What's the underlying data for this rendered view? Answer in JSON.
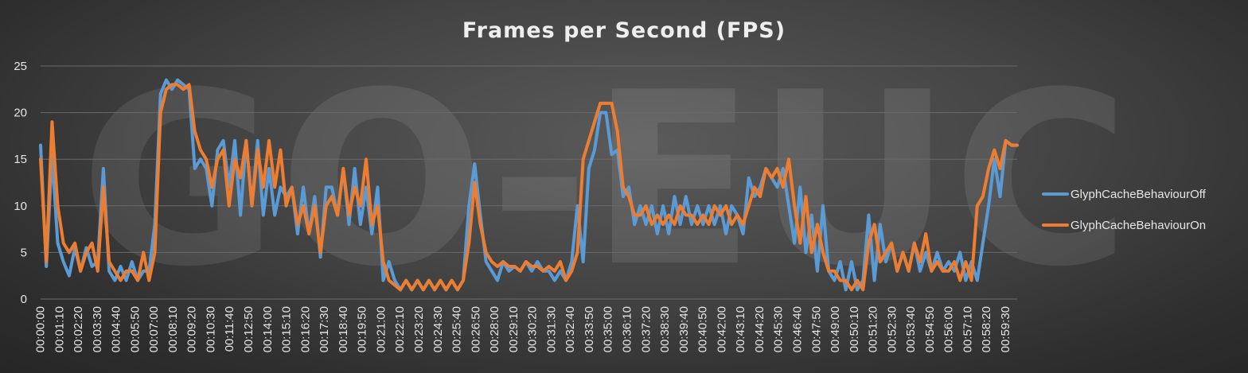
{
  "chart_data": {
    "type": "line",
    "title": "Frames per Second (FPS)",
    "watermark": "GO-EUC",
    "xlabel": "",
    "ylabel": "",
    "ylim": [
      0,
      25
    ],
    "yticks": [
      0,
      5,
      10,
      15,
      20,
      25
    ],
    "grid": "horizontal",
    "legend_position": "right",
    "x_tick_labels": [
      "00:00:00",
      "00:01:10",
      "00:02:20",
      "00:03:30",
      "00:04:40",
      "00:05:50",
      "00:07:00",
      "00:08:10",
      "00:09:20",
      "00:10:30",
      "00:11:40",
      "00:12:50",
      "00:14:00",
      "00:15:10",
      "00:16:20",
      "00:17:30",
      "00:18:40",
      "00:19:50",
      "00:21:00",
      "00:22:10",
      "00:23:20",
      "00:24:30",
      "00:25:40",
      "00:26:50",
      "00:28:00",
      "00:29:10",
      "00:30:20",
      "00:31:30",
      "00:32:40",
      "00:33:50",
      "00:35:00",
      "00:36:10",
      "00:37:20",
      "00:38:30",
      "00:39:40",
      "00:40:50",
      "00:42:00",
      "00:43:10",
      "00:44:20",
      "00:45:30",
      "00:46:40",
      "00:47:50",
      "00:49:00",
      "00:50:10",
      "00:51:20",
      "00:52:30",
      "00:53:40",
      "00:54:50",
      "00:56:00",
      "00:57:10",
      "00:58:20",
      "00:59:30"
    ],
    "series": [
      {
        "name": "GlyphCacheBehaviourOff",
        "color": "#5b9bd5",
        "values": [
          16.5,
          3.5,
          15.5,
          6,
          4,
          2.5,
          5.5,
          3,
          5.5,
          3.5,
          4,
          14,
          3,
          2,
          3.5,
          2,
          4,
          2,
          3,
          3,
          8,
          22,
          23.5,
          22.5,
          23.5,
          23,
          22.5,
          14,
          15,
          14,
          10,
          16,
          17,
          12,
          17,
          9,
          17,
          10,
          17,
          9,
          14,
          9,
          12,
          11,
          12,
          7,
          12,
          7,
          11,
          4.5,
          12,
          12,
          9,
          14,
          8,
          14,
          8,
          12,
          7,
          12,
          2,
          4,
          2,
          1,
          2,
          1,
          2,
          1,
          2,
          1,
          2,
          1,
          2,
          1,
          2,
          10,
          14.5,
          9,
          4,
          3,
          2,
          4,
          3,
          3.5,
          3,
          4,
          3,
          4,
          3,
          3,
          2,
          3,
          2,
          4,
          10,
          4,
          14,
          16,
          20,
          20,
          15.5,
          16,
          11,
          12,
          8,
          10,
          8,
          10,
          7,
          10,
          7,
          11,
          8,
          11,
          8,
          10,
          8,
          10,
          8,
          10,
          7,
          10,
          9,
          7,
          13,
          11,
          12,
          14,
          13,
          12,
          14,
          10,
          6,
          12,
          5,
          9,
          3,
          10,
          3,
          2,
          4,
          1,
          4,
          1,
          2,
          9,
          2,
          8,
          4,
          6,
          3,
          5,
          3,
          6,
          3,
          5,
          3,
          5,
          3,
          4,
          3,
          5,
          2,
          4,
          2,
          6,
          10,
          15,
          11,
          17,
          16.5,
          16.5
        ]
      },
      {
        "name": "GlyphCacheBehaviourOn",
        "color": "#ed7d31",
        "values": [
          15,
          4,
          19,
          10,
          6,
          5,
          6,
          3,
          5,
          6,
          3,
          12,
          4,
          3,
          2,
          3,
          3,
          2,
          5,
          2,
          5,
          20,
          22.5,
          23,
          23,
          22.5,
          23,
          18,
          16,
          15,
          12,
          15,
          16,
          10,
          15,
          13,
          17,
          10,
          16,
          12,
          17,
          12,
          16,
          10,
          12,
          8,
          10,
          7,
          10,
          5,
          10,
          11,
          9,
          14,
          9,
          12,
          10,
          15,
          8,
          10,
          4,
          2,
          1.5,
          1,
          2,
          1,
          2,
          1,
          2,
          1,
          2,
          1,
          2,
          1,
          2,
          6,
          12.5,
          8,
          5,
          4,
          3.5,
          4,
          3.5,
          3.5,
          3,
          4,
          3.5,
          3.5,
          3,
          3.5,
          3,
          4,
          2,
          3,
          5,
          15,
          17,
          19,
          21,
          21,
          21,
          18,
          12,
          11,
          9,
          9,
          10,
          8,
          9,
          8,
          9,
          8,
          10,
          9,
          9,
          8,
          9,
          8,
          10,
          9,
          10,
          8,
          9,
          8,
          10,
          12,
          11,
          14,
          13,
          14,
          12,
          15,
          10,
          6,
          11,
          5,
          8,
          5,
          3,
          3,
          2,
          2,
          1,
          2,
          1,
          6,
          8,
          4,
          5,
          6,
          3,
          5,
          3,
          6,
          4,
          7,
          3,
          4,
          3,
          3,
          4,
          2,
          4,
          2,
          10,
          11,
          14,
          16,
          14,
          17,
          16.5,
          16.5
        ]
      }
    ]
  }
}
